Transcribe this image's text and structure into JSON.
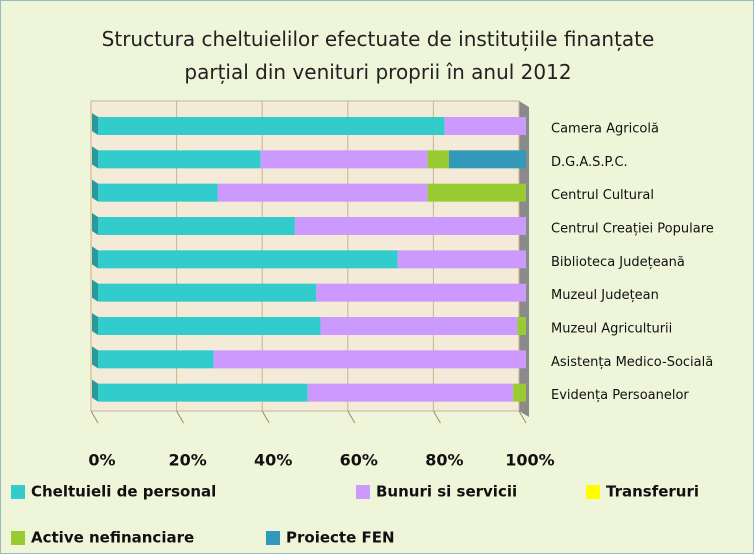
{
  "chart_data": {
    "type": "stacked_bar_horizontal",
    "title": "Structura cheltuielilor efectuate de instituțiile finanțate parțial din venituri proprii în anul 2012",
    "categories": [
      "Camera Agricolă",
      "D.G.A.S.P.C.",
      "Centrul Cultural",
      "Centrul Creației Populare",
      "Biblioteca Județeană",
      "Muzeul Județean",
      "Muzeul Agriculturii",
      "Asistența Medico-Socială",
      "Evidența Persoanelor"
    ],
    "series": [
      {
        "name": "Cheltuieli de personal",
        "color": "#33cccc",
        "values": [
          81,
          38,
          28,
          46,
          70,
          51,
          52,
          27,
          49
        ]
      },
      {
        "name": "Bunuri si servicii",
        "color": "#cc99ff",
        "values": [
          19,
          39,
          49,
          54,
          30,
          49,
          46,
          73,
          48
        ]
      },
      {
        "name": "Transferuri",
        "color": "#ffff00",
        "values": [
          0,
          0,
          0,
          0,
          0,
          0,
          0,
          0,
          0
        ]
      },
      {
        "name": "Active nefinanciare",
        "color": "#99cc33",
        "values": [
          0,
          5,
          23,
          0,
          0,
          0,
          2,
          0,
          3
        ]
      },
      {
        "name": "Proiecte FEN",
        "color": "#3399bb",
        "values": [
          0,
          18,
          0,
          0,
          0,
          0,
          0,
          0,
          0
        ]
      }
    ],
    "xlim": [
      0,
      100
    ],
    "xticks": [
      {
        "value": 0,
        "label": "0%"
      },
      {
        "value": 20,
        "label": "20%"
      },
      {
        "value": 40,
        "label": "40%"
      },
      {
        "value": 60,
        "label": "60%"
      },
      {
        "value": 80,
        "label": "80%"
      },
      {
        "value": 100,
        "label": "100%"
      }
    ],
    "grid": true
  }
}
